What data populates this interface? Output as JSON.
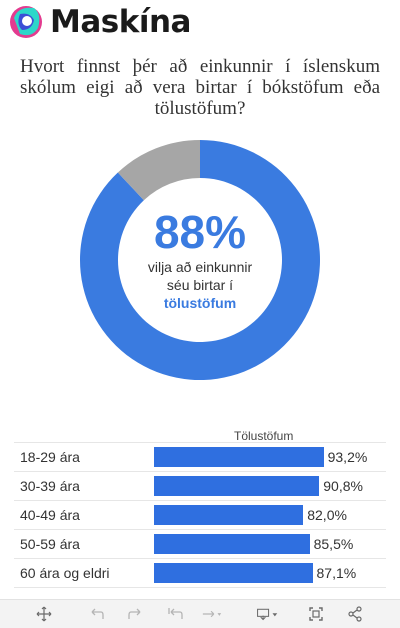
{
  "brand": {
    "name": "Maskína"
  },
  "question": "Hvort finnst þér að einkunnir í íslenskum skólum eigi að vera birtar í bókstöfum eða tölustöfum?",
  "colors": {
    "primary": "#2f6fe0",
    "donut_main": "#3a7be0",
    "donut_other": "#a6a6a6"
  },
  "chart_data": [
    {
      "type": "pie",
      "categories": [
        "tölustöfum",
        "bókstöfum"
      ],
      "values": [
        88,
        12
      ],
      "center": {
        "value_label": "88%",
        "line1": "vilja að einkunnir",
        "line2": "séu birtar í",
        "highlight": "tölustöfum"
      }
    },
    {
      "type": "bar",
      "orientation": "horizontal",
      "column_header": "Tölustöfum",
      "categories": [
        "18-29 ára",
        "30-39 ára",
        "40-49 ára",
        "50-59 ára",
        "60 ára og eldri"
      ],
      "values": [
        93.2,
        90.8,
        82.0,
        85.5,
        87.1
      ],
      "value_labels": [
        "93,2%",
        "90,8%",
        "82,0%",
        "85,5%",
        "87,1%"
      ],
      "xlim": [
        0,
        100
      ]
    }
  ],
  "toolbar": {
    "icons": [
      "move-icon",
      "undo-icon",
      "redo-icon",
      "revert-icon",
      "forward-icon",
      "download-icon",
      "fullscreen-icon",
      "share-icon"
    ]
  }
}
